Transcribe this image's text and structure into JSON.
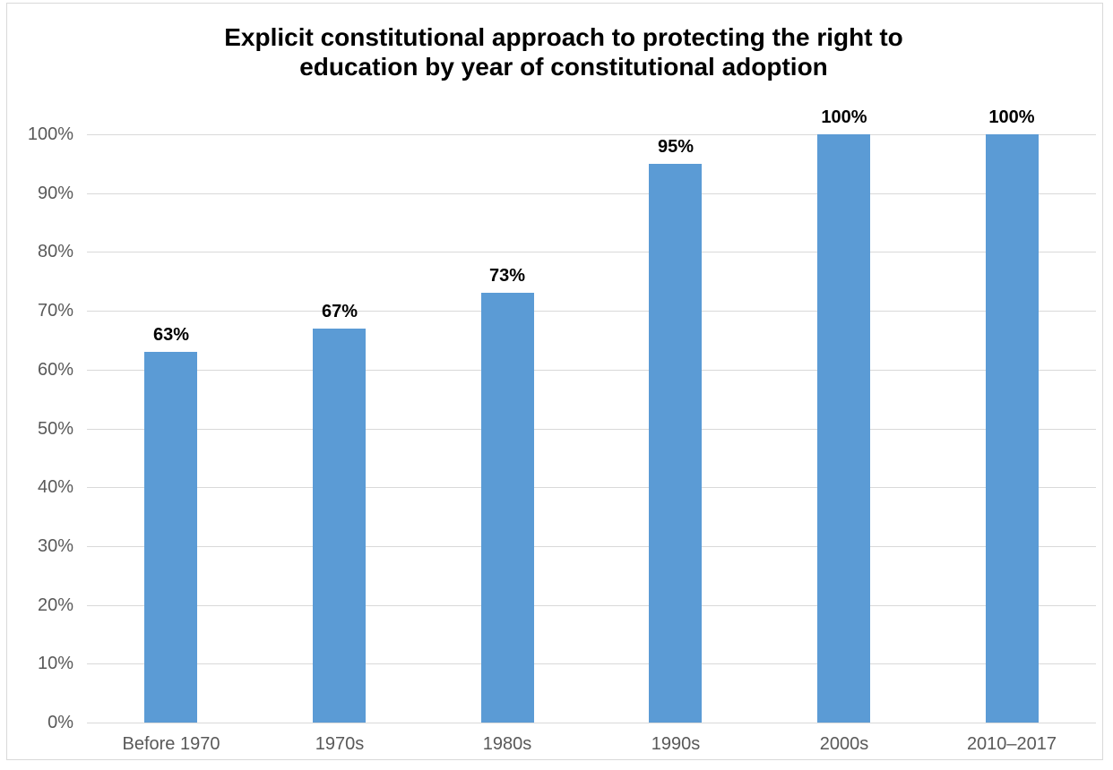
{
  "chart_data": {
    "type": "bar",
    "title": "Explicit constitutional approach to protecting the right to education by year of constitutional adoption",
    "title_lines": [
      "Explicit constitutional approach to protecting the right to",
      "education by year of constitutional adoption"
    ],
    "categories": [
      "Before 1970",
      "1970s",
      "1980s",
      "1990s",
      "2000s",
      "2010–2017"
    ],
    "values": [
      63,
      67,
      73,
      95,
      100,
      100
    ],
    "data_labels": [
      "63%",
      "67%",
      "73%",
      "95%",
      "100%",
      "100%"
    ],
    "y_ticks": [
      "0%",
      "10%",
      "20%",
      "30%",
      "40%",
      "50%",
      "60%",
      "70%",
      "80%",
      "90%",
      "100%"
    ],
    "ylim": [
      0,
      100
    ],
    "y_step": 10,
    "xlabel": "",
    "ylabel": "",
    "grid": true,
    "legend": "none",
    "colors": {
      "bar": "#5B9BD5",
      "gridline": "#D9D9D9",
      "axis_labels": "#595959",
      "data_labels": "#000000",
      "title": "#000000",
      "frame_border": "#D9D9D9",
      "background": "#FFFFFF"
    }
  }
}
